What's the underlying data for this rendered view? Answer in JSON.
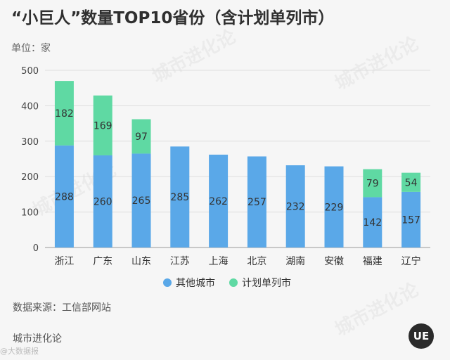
{
  "title": "“小巨人”数量TOP10省份（含计划单列市）",
  "unit_label": "单位：家",
  "source": "数据来源：工信部网站",
  "brand": "城市进化论",
  "credit": "@大数据报",
  "watermark": "城市进化论",
  "logo_text": "UE",
  "colors": {
    "other": "#5aa8e8",
    "planned": "#5fd9a3"
  },
  "chart_data": {
    "type": "bar",
    "stacked": true,
    "categories": [
      "浙江",
      "广东",
      "山东",
      "江苏",
      "上海",
      "北京",
      "湖南",
      "安徽",
      "福建",
      "辽宁"
    ],
    "series": [
      {
        "name": "其他城市",
        "values": [
          288,
          260,
          265,
          285,
          262,
          257,
          232,
          229,
          142,
          157
        ]
      },
      {
        "name": "计划单列市",
        "values": [
          182,
          169,
          97,
          0,
          0,
          0,
          0,
          0,
          79,
          54
        ]
      }
    ],
    "ylim": [
      0,
      500
    ],
    "yticks": [
      0,
      100,
      200,
      300,
      400,
      500
    ],
    "grid": true,
    "legend": "bottom"
  }
}
